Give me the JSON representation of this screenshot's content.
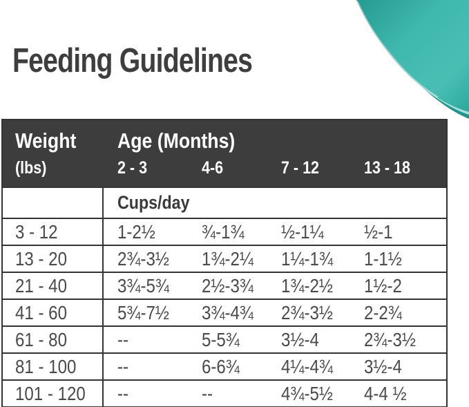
{
  "title": "Feeding Guidelines",
  "decoration": {
    "name": "teal-corner-swoosh",
    "color_dark": "#1e968b",
    "color_main": "#38b3a8",
    "color_light": "#a5e0da"
  },
  "table": {
    "header": {
      "weight_label": "Weight",
      "weight_unit": "(lbs)",
      "age_label": "Age (Months)",
      "age_columns": [
        "2 - 3",
        "4-6",
        "7 - 12",
        "13 - 18"
      ],
      "bg": "#3d3d3d",
      "text_color": "#ffffff"
    },
    "units_row": {
      "label": "Cups/day"
    },
    "rows": [
      {
        "weight": "3 - 12",
        "values": [
          "1-2½",
          "¾-1¾",
          "½-1¼",
          "½-1"
        ]
      },
      {
        "weight": "13 - 20",
        "values": [
          "2¾-3½",
          "1¾-2¼",
          "1¼-1¾",
          "1-1½"
        ]
      },
      {
        "weight": "21 - 40",
        "values": [
          "3¾-5¾",
          "2½-3¾",
          "1¾-2½",
          "1½-2"
        ]
      },
      {
        "weight": "41 - 60",
        "values": [
          "5¾-7½",
          "3¾-4¾",
          "2¾-3½",
          "2-2¾"
        ]
      },
      {
        "weight": "61 - 80",
        "values": [
          "--",
          "5-5¾",
          "3½-4",
          "2¾-3½"
        ]
      },
      {
        "weight": "81 - 100",
        "values": [
          "--",
          "6-6¾",
          "4¼-4¾",
          "3½-4"
        ]
      },
      {
        "weight": "101 - 120",
        "values": [
          "--",
          "--",
          "4¾-5½",
          "4-4 ½"
        ]
      }
    ]
  }
}
